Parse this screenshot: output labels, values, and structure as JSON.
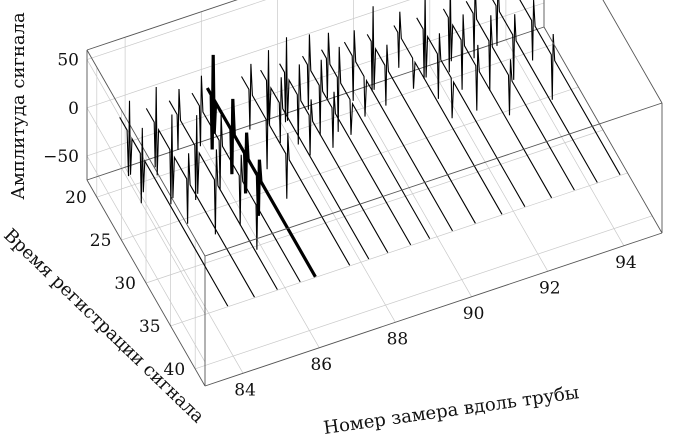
{
  "chart_data": {
    "type": "3d-waterfall",
    "title": "",
    "xlabel": "Номер замера вдоль трубы",
    "ylabel": "Время регистрации сигнала",
    "zlabel": "Амплитуда сигнала",
    "xlim": [
      83,
      95
    ],
    "ylim": [
      18,
      42
    ],
    "zlim": [
      -75,
      60
    ],
    "x_ticks": [
      "84",
      "86",
      "88",
      "90",
      "92",
      "94"
    ],
    "x_tick_values": [
      84,
      86,
      88,
      90,
      92,
      94
    ],
    "y_ticks": [
      "20",
      "25",
      "30",
      "35",
      "40"
    ],
    "y_tick_values": [
      20,
      25,
      30,
      35,
      40
    ],
    "z_ticks": [
      "50",
      "0",
      "−50"
    ],
    "z_tick_values": [
      50,
      0,
      -50
    ],
    "grid": true,
    "traces": [
      {
        "x": 83.6,
        "thick": false,
        "points": [
          [
            20.0,
            0
          ],
          [
            21.5,
            0
          ],
          [
            21.8,
            -45
          ],
          [
            22.0,
            35
          ],
          [
            22.2,
            -40
          ],
          [
            22.5,
            0
          ],
          [
            24.2,
            0
          ],
          [
            24.4,
            -50
          ],
          [
            24.6,
            30
          ],
          [
            24.8,
            -35
          ],
          [
            25.1,
            0
          ],
          [
            42.0,
            0
          ]
        ]
      },
      {
        "x": 84.3,
        "thick": false,
        "points": [
          [
            20.0,
            0
          ],
          [
            21.6,
            0
          ],
          [
            21.8,
            -45
          ],
          [
            22.0,
            40
          ],
          [
            22.2,
            -50
          ],
          [
            22.5,
            0
          ],
          [
            24.8,
            0
          ],
          [
            25.0,
            -55
          ],
          [
            25.2,
            40
          ],
          [
            25.4,
            -45
          ],
          [
            25.7,
            0
          ],
          [
            28.2,
            0
          ],
          [
            28.4,
            -45
          ],
          [
            28.6,
            30
          ],
          [
            28.9,
            0
          ],
          [
            42.0,
            0
          ]
        ]
      },
      {
        "x": 84.9,
        "thick": false,
        "points": [
          [
            20.0,
            0
          ],
          [
            21.6,
            0
          ],
          [
            21.8,
            -35
          ],
          [
            22.0,
            30
          ],
          [
            22.3,
            0
          ],
          [
            25.2,
            0
          ],
          [
            25.4,
            -55
          ],
          [
            25.6,
            35
          ],
          [
            25.8,
            -45
          ],
          [
            26.1,
            0
          ],
          [
            29.2,
            0
          ],
          [
            29.4,
            -55
          ],
          [
            29.6,
            35
          ],
          [
            29.9,
            0
          ],
          [
            42.0,
            0
          ]
        ]
      },
      {
        "x": 85.5,
        "thick": false,
        "points": [
          [
            20.0,
            0
          ],
          [
            21.5,
            0
          ],
          [
            21.7,
            -40
          ],
          [
            21.9,
            35
          ],
          [
            22.2,
            0
          ],
          [
            25.5,
            0
          ],
          [
            25.7,
            -50
          ],
          [
            25.9,
            30
          ],
          [
            26.2,
            0
          ],
          [
            29.6,
            0
          ],
          [
            29.8,
            -50
          ],
          [
            30.0,
            25
          ],
          [
            30.3,
            0
          ],
          [
            33.0,
            0
          ],
          [
            33.2,
            -45
          ],
          [
            33.4,
            25
          ],
          [
            33.7,
            0
          ],
          [
            42.0,
            0
          ]
        ]
      },
      {
        "x": 85.9,
        "thick": true,
        "points": [
          [
            20.0,
            0
          ],
          [
            20.8,
            0
          ],
          [
            21.0,
            -55
          ],
          [
            21.2,
            45
          ],
          [
            21.4,
            -35
          ],
          [
            21.7,
            0
          ],
          [
            24.8,
            0
          ],
          [
            25.0,
            -45
          ],
          [
            25.2,
            35
          ],
          [
            25.5,
            0
          ],
          [
            27.6,
            0
          ],
          [
            27.8,
            -40
          ],
          [
            28.0,
            25
          ],
          [
            28.3,
            0
          ],
          [
            30.2,
            0
          ],
          [
            30.4,
            -40
          ],
          [
            30.6,
            20
          ],
          [
            30.9,
            0
          ],
          [
            42.0,
            0
          ]
        ]
      },
      {
        "x": 86.8,
        "thick": false,
        "points": [
          [
            20.0,
            0
          ],
          [
            21.5,
            0
          ],
          [
            21.7,
            -40
          ],
          [
            21.9,
            30
          ],
          [
            22.2,
            0
          ],
          [
            25.0,
            0
          ],
          [
            25.2,
            -50
          ],
          [
            25.4,
            30
          ],
          [
            25.7,
            0
          ],
          [
            29.0,
            0
          ],
          [
            29.2,
            -45
          ],
          [
            29.4,
            25
          ],
          [
            29.7,
            0
          ],
          [
            42.0,
            0
          ]
        ]
      },
      {
        "x": 87.3,
        "thick": false,
        "points": [
          [
            20.0,
            0
          ],
          [
            21.2,
            0
          ],
          [
            21.4,
            -45
          ],
          [
            21.6,
            35
          ],
          [
            21.8,
            -40
          ],
          [
            22.1,
            0
          ],
          [
            23.8,
            0
          ],
          [
            24.0,
            -40
          ],
          [
            24.2,
            30
          ],
          [
            24.5,
            0
          ],
          [
            42.0,
            0
          ]
        ]
      },
      {
        "x": 87.8,
        "thick": false,
        "points": [
          [
            20.0,
            0
          ],
          [
            21.0,
            0
          ],
          [
            21.2,
            -50
          ],
          [
            21.4,
            40
          ],
          [
            21.6,
            -45
          ],
          [
            21.9,
            0
          ],
          [
            23.6,
            0
          ],
          [
            23.8,
            -50
          ],
          [
            24.0,
            35
          ],
          [
            24.3,
            0
          ],
          [
            26.0,
            0
          ],
          [
            26.2,
            -40
          ],
          [
            26.4,
            20
          ],
          [
            26.7,
            0
          ],
          [
            42.0,
            0
          ]
        ]
      },
      {
        "x": 88.4,
        "thick": false,
        "points": [
          [
            20.0,
            0
          ],
          [
            21.0,
            0
          ],
          [
            21.2,
            -45
          ],
          [
            21.4,
            35
          ],
          [
            21.7,
            0
          ],
          [
            23.4,
            0
          ],
          [
            23.6,
            -50
          ],
          [
            23.8,
            30
          ],
          [
            24.1,
            0
          ],
          [
            26.0,
            0
          ],
          [
            26.2,
            -40
          ],
          [
            26.4,
            20
          ],
          [
            26.7,
            0
          ],
          [
            42.0,
            0
          ]
        ]
      },
      {
        "x": 88.9,
        "thick": false,
        "points": [
          [
            20.0,
            0
          ],
          [
            21.0,
            0
          ],
          [
            21.2,
            -40
          ],
          [
            21.4,
            30
          ],
          [
            21.7,
            0
          ],
          [
            23.2,
            0
          ],
          [
            23.4,
            -55
          ],
          [
            23.6,
            35
          ],
          [
            23.9,
            0
          ],
          [
            25.8,
            0
          ],
          [
            26.0,
            -35
          ],
          [
            26.3,
            0
          ],
          [
            42.0,
            0
          ]
        ]
      },
      {
        "x": 89.5,
        "thick": false,
        "points": [
          [
            20.0,
            0
          ],
          [
            21.6,
            0
          ],
          [
            21.8,
            -45
          ],
          [
            22.0,
            30
          ],
          [
            22.3,
            0
          ],
          [
            24.0,
            0
          ],
          [
            24.2,
            -40
          ],
          [
            24.5,
            0
          ],
          [
            42.0,
            0
          ]
        ]
      },
      {
        "x": 90.1,
        "thick": false,
        "points": [
          [
            20.0,
            0
          ],
          [
            20.8,
            0
          ],
          [
            21.0,
            -50
          ],
          [
            21.2,
            40
          ],
          [
            21.4,
            -45
          ],
          [
            21.7,
            0
          ],
          [
            23.6,
            0
          ],
          [
            23.8,
            -40
          ],
          [
            24.0,
            25
          ],
          [
            24.3,
            0
          ],
          [
            42.0,
            0
          ]
        ]
      },
      {
        "x": 90.8,
        "thick": false,
        "points": [
          [
            20.0,
            0
          ],
          [
            20.8,
            0
          ],
          [
            21.0,
            -35
          ],
          [
            21.2,
            25
          ],
          [
            21.5,
            0
          ],
          [
            23.8,
            0
          ],
          [
            24.0,
            -30
          ],
          [
            24.3,
            0
          ],
          [
            42.0,
            0
          ]
        ]
      },
      {
        "x": 91.4,
        "thick": false,
        "points": [
          [
            20.0,
            0
          ],
          [
            21.3,
            0
          ],
          [
            21.5,
            -50
          ],
          [
            21.7,
            40
          ],
          [
            21.9,
            -45
          ],
          [
            22.2,
            0
          ],
          [
            24.2,
            0
          ],
          [
            24.4,
            -45
          ],
          [
            24.6,
            25
          ],
          [
            24.9,
            0
          ],
          [
            27.0,
            0
          ],
          [
            27.2,
            -40
          ],
          [
            27.5,
            0
          ],
          [
            42.0,
            0
          ]
        ]
      },
      {
        "x": 92.1,
        "thick": false,
        "points": [
          [
            20.0,
            0
          ],
          [
            21.0,
            0
          ],
          [
            21.2,
            -55
          ],
          [
            21.4,
            40
          ],
          [
            21.6,
            -40
          ],
          [
            21.9,
            0
          ],
          [
            23.6,
            0
          ],
          [
            23.8,
            -50
          ],
          [
            24.0,
            30
          ],
          [
            24.3,
            0
          ],
          [
            26.6,
            0
          ],
          [
            26.8,
            -45
          ],
          [
            27.0,
            25
          ],
          [
            27.3,
            0
          ],
          [
            42.0,
            0
          ]
        ]
      },
      {
        "x": 92.7,
        "thick": false,
        "points": [
          [
            20.0,
            0
          ],
          [
            21.4,
            0
          ],
          [
            21.6,
            -45
          ],
          [
            21.8,
            35
          ],
          [
            22.1,
            0
          ],
          [
            24.6,
            0
          ],
          [
            24.8,
            -50
          ],
          [
            25.0,
            30
          ],
          [
            25.3,
            0
          ],
          [
            28.6,
            0
          ],
          [
            28.8,
            -40
          ],
          [
            29.0,
            20
          ],
          [
            29.3,
            0
          ],
          [
            42.0,
            0
          ]
        ]
      },
      {
        "x": 93.3,
        "thick": false,
        "points": [
          [
            20.0,
            0
          ],
          [
            21.4,
            0
          ],
          [
            21.6,
            -40
          ],
          [
            21.8,
            30
          ],
          [
            22.1,
            0
          ],
          [
            24.8,
            0
          ],
          [
            25.0,
            -45
          ],
          [
            25.2,
            25
          ],
          [
            25.5,
            0
          ],
          [
            42.0,
            0
          ]
        ]
      },
      {
        "x": 93.9,
        "thick": false,
        "points": [
          [
            20.0,
            0
          ],
          [
            24.0,
            0
          ],
          [
            24.2,
            -40
          ],
          [
            24.4,
            25
          ],
          [
            24.7,
            0
          ],
          [
            28.0,
            0
          ],
          [
            28.2,
            -45
          ],
          [
            28.4,
            25
          ],
          [
            28.7,
            0
          ],
          [
            42.0,
            0
          ]
        ]
      }
    ]
  }
}
